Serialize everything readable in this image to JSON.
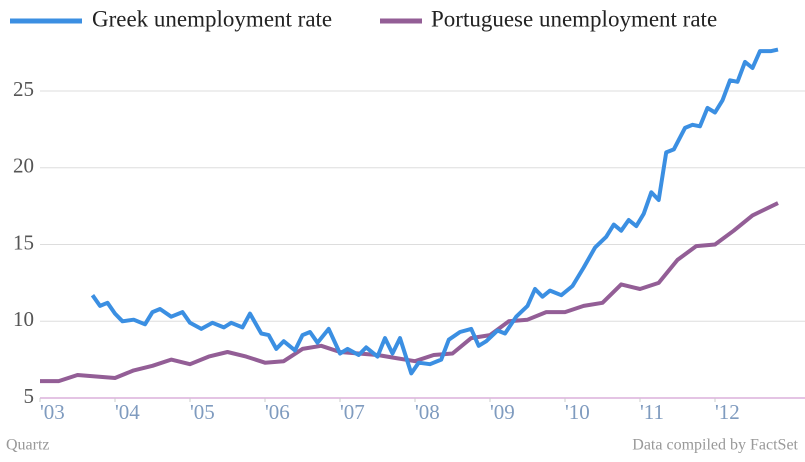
{
  "chart_data": {
    "type": "line",
    "series": [
      {
        "name": "Greek unemployment rate",
        "color": "#3b8fe2",
        "x": [
          2003.7,
          2003.8,
          2003.9,
          2004.0,
          2004.1,
          2004.25,
          2004.4,
          2004.5,
          2004.6,
          2004.75,
          2004.9,
          2005.0,
          2005.15,
          2005.3,
          2005.45,
          2005.55,
          2005.7,
          2005.8,
          2005.95,
          2006.05,
          2006.15,
          2006.25,
          2006.4,
          2006.5,
          2006.6,
          2006.7,
          2006.85,
          2007.0,
          2007.1,
          2007.25,
          2007.35,
          2007.5,
          2007.6,
          2007.7,
          2007.8,
          2007.95,
          2008.05,
          2008.2,
          2008.35,
          2008.45,
          2008.6,
          2008.75,
          2008.85,
          2008.95,
          2009.1,
          2009.2,
          2009.35,
          2009.5,
          2009.6,
          2009.7,
          2009.8,
          2009.95,
          2010.1,
          2010.25,
          2010.4,
          2010.55,
          2010.65,
          2010.75,
          2010.85,
          2010.95,
          2011.05,
          2011.15,
          2011.25,
          2011.35,
          2011.45,
          2011.6,
          2011.7,
          2011.8,
          2011.9,
          2012.0,
          2012.1,
          2012.2,
          2012.3,
          2012.4,
          2012.5,
          2012.6,
          2012.75,
          2012.84
        ],
        "values": [
          11.7,
          11.0,
          11.2,
          10.5,
          10.0,
          10.1,
          9.8,
          10.6,
          10.8,
          10.3,
          10.6,
          9.9,
          9.5,
          9.9,
          9.6,
          9.9,
          9.6,
          10.5,
          9.2,
          9.1,
          8.2,
          8.7,
          8.1,
          9.1,
          9.3,
          8.6,
          9.5,
          7.9,
          8.2,
          7.8,
          8.3,
          7.7,
          8.9,
          7.9,
          8.9,
          6.6,
          7.3,
          7.2,
          7.5,
          8.8,
          9.3,
          9.5,
          8.4,
          8.7,
          9.4,
          9.2,
          10.3,
          11.0,
          12.1,
          11.6,
          12.0,
          11.7,
          12.3,
          13.5,
          14.8,
          15.5,
          16.3,
          15.9,
          16.6,
          16.2,
          17.0,
          18.4,
          17.9,
          21.0,
          21.2,
          22.6,
          22.8,
          22.7,
          23.9,
          23.6,
          24.4,
          25.7,
          25.6,
          26.9,
          26.5,
          27.6,
          27.6,
          27.7
        ]
      },
      {
        "name": "Portuguese unemployment rate",
        "color": "#935e96",
        "x": [
          2003.0,
          2003.25,
          2003.5,
          2003.75,
          2004.0,
          2004.25,
          2004.5,
          2004.75,
          2005.0,
          2005.25,
          2005.5,
          2005.75,
          2006.0,
          2006.25,
          2006.5,
          2006.75,
          2007.0,
          2007.25,
          2007.5,
          2007.75,
          2008.0,
          2008.25,
          2008.5,
          2008.75,
          2009.0,
          2009.25,
          2009.5,
          2009.75,
          2010.0,
          2010.25,
          2010.5,
          2010.75,
          2011.0,
          2011.25,
          2011.5,
          2011.75,
          2012.0,
          2012.25,
          2012.5,
          2012.84
        ],
        "values": [
          6.1,
          6.1,
          6.5,
          6.4,
          6.3,
          6.8,
          7.1,
          7.5,
          7.2,
          7.7,
          8.0,
          7.7,
          7.3,
          7.4,
          8.2,
          8.4,
          8.0,
          7.9,
          7.8,
          7.6,
          7.4,
          7.8,
          7.9,
          8.9,
          9.1,
          10.0,
          10.1,
          10.6,
          10.6,
          11.0,
          11.2,
          12.4,
          12.1,
          12.5,
          14.0,
          14.9,
          15.0,
          15.9,
          16.9,
          17.7
        ]
      }
    ],
    "xlim": [
      2003,
      2013.2
    ],
    "xticks": [
      {
        "value": 2003,
        "label": "'03"
      },
      {
        "value": 2004,
        "label": "'04"
      },
      {
        "value": 2005,
        "label": "'05"
      },
      {
        "value": 2006,
        "label": "'06"
      },
      {
        "value": 2007,
        "label": "'07"
      },
      {
        "value": 2008,
        "label": "'08"
      },
      {
        "value": 2009,
        "label": "'09"
      },
      {
        "value": 2010,
        "label": "'10"
      },
      {
        "value": 2011,
        "label": "'11"
      },
      {
        "value": 2012,
        "label": "'12"
      }
    ],
    "ylim": [
      5,
      28
    ],
    "yticks": [
      5,
      10,
      15,
      20,
      25
    ],
    "grid": true,
    "source_left": "Quartz",
    "source_right": "Data compiled by FactSet"
  }
}
